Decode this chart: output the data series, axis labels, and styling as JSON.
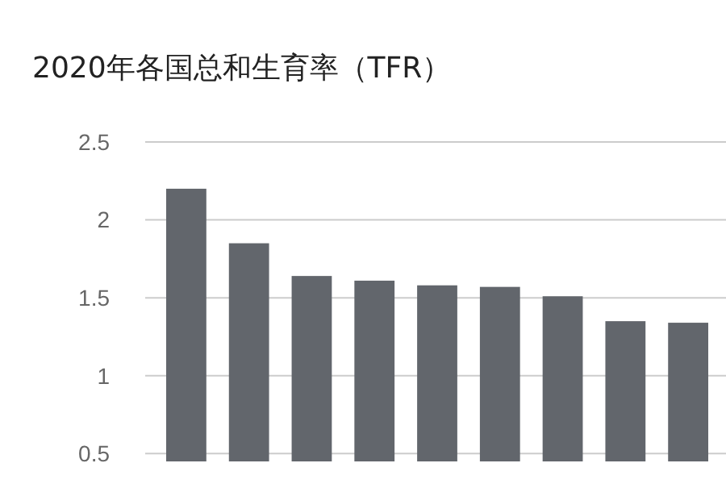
{
  "chart_data": {
    "type": "bar",
    "title": "2020年各国总和生育率（TFR）",
    "categories": [
      null,
      null,
      null,
      null,
      null,
      null,
      null,
      null,
      null
    ],
    "values": [
      2.2,
      1.85,
      1.64,
      1.61,
      1.58,
      1.57,
      1.51,
      1.35,
      1.34
    ],
    "color": "#62666c",
    "ylim": [
      0.45,
      2.5
    ],
    "yticks": [
      0.5,
      1,
      1.5,
      2,
      2.5
    ],
    "grid": "y"
  }
}
